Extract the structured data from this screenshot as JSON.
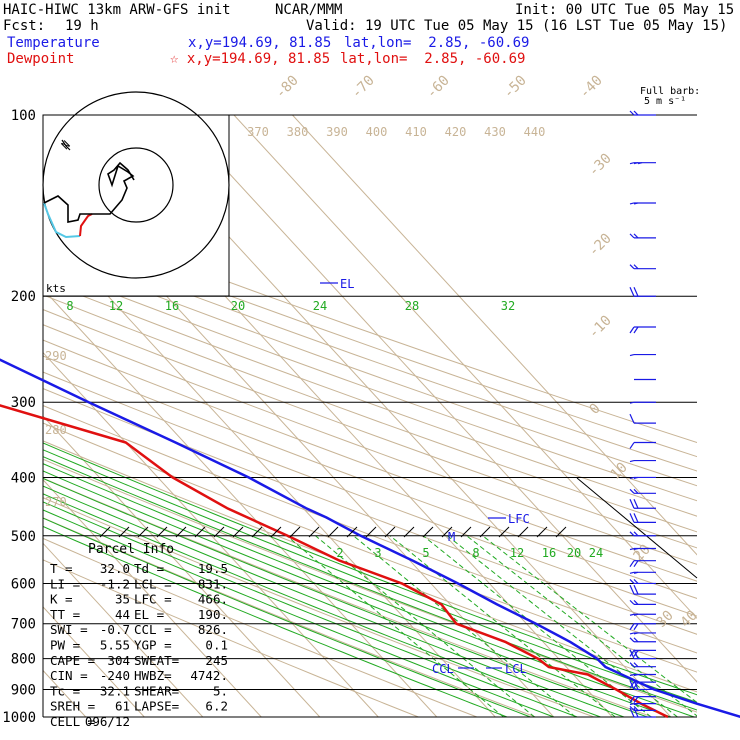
{
  "header": {
    "model": "HAIC-HIWC 13km ARW-GFS init",
    "org": "NCAR/MMM",
    "init": "Init: 00 UTC Tue 05 May 15",
    "fcst_label": "Fcst:",
    "fcst_value": "19 h",
    "valid": "Valid: 19 UTC Tue 05 May 15 (16 LST Tue 05 May 15)",
    "temp_label": "Temperature",
    "temp_xy": "x,y=194.69, 81.85",
    "temp_latlon": "lat,lon=  2.85, -60.69",
    "dew_label": "Dewpoint",
    "dew_xy": "☆ x,y=194.69, 81.85",
    "dew_latlon": "lat,lon=  2.85, -60.69"
  },
  "wind_legend": {
    "line1": "Full barb:",
    "line2": "5 m s⁻¹"
  },
  "hodograph": {
    "units": "kts",
    "north_label": "N"
  },
  "parcel": {
    "title": "Parcel Info",
    "rows": [
      [
        "T    =",
        "32.0",
        "Td =",
        "19.5"
      ],
      [
        "LI   =",
        "-1.2",
        "LCL =",
        "831."
      ],
      [
        "K    =",
        "35",
        "LFC =",
        "466."
      ],
      [
        "TT   =",
        "44",
        "EL  =",
        "190."
      ],
      [
        "SWI  =",
        "-0.7",
        "CCL =",
        "826."
      ],
      [
        "PW   =",
        "5.55",
        "YGP =",
        "0.1"
      ],
      [
        "CAPE =",
        "304",
        "SWEAT=",
        "245"
      ],
      [
        "CIN  =",
        "-240",
        "HWBZ=",
        "4742."
      ],
      [
        "Tc   =",
        "32.1",
        "SHEAR=",
        "5."
      ],
      [
        "SREH =",
        "61",
        "LAPSE=",
        "6.2"
      ],
      [
        "CELL =",
        "096/12",
        "",
        ""
      ]
    ]
  },
  "levels": {
    "el": "EL",
    "lfc": "LFC",
    "lcl": "LCL",
    "ccl": "CCL",
    "m": "M"
  },
  "colors": {
    "temperature": "#1a1ae6",
    "dewpoint": "#e01010",
    "mixing": "#22aa22",
    "adiabat": "#c8b496",
    "grid": "#000000"
  },
  "chart_data": {
    "type": "line",
    "title": "",
    "ylabel": "",
    "yscale": "log",
    "ylim": [
      1000,
      100
    ],
    "y_ticks": [
      100,
      200,
      300,
      400,
      500,
      600,
      700,
      800,
      900,
      1000
    ],
    "isotherm_labels": [
      "-80",
      "-70",
      "-60",
      "-50",
      "-40",
      "-30",
      "-20",
      "-10",
      "0",
      "10",
      "20",
      "30",
      "40"
    ],
    "theta_labels": [
      "370",
      "380",
      "390",
      "400",
      "410",
      "420",
      "430",
      "440"
    ],
    "theta_low_labels": [
      "290",
      "280",
      "270"
    ],
    "mixing_labels_upper": [
      "8",
      "12",
      "16",
      "20",
      "24",
      "28",
      "32"
    ],
    "mixing_labels_lower": [
      "2",
      "3",
      "5",
      "8",
      "12",
      "16",
      "20",
      "24"
    ],
    "series": [
      {
        "name": "Temperature",
        "points": [
          [
            1000,
            32.0
          ],
          [
            950,
            26.5
          ],
          [
            900,
            21.5
          ],
          [
            850,
            18.3
          ],
          [
            826,
            16.7
          ],
          [
            800,
            16.6
          ],
          [
            750,
            14.6
          ],
          [
            700,
            11.6
          ],
          [
            650,
            8.0
          ],
          [
            600,
            4.6
          ],
          [
            550,
            0.5
          ],
          [
            500,
            -4.5
          ],
          [
            466,
            -7.5
          ],
          [
            450,
            -9.5
          ],
          [
            400,
            -14.5
          ],
          [
            350,
            -21.5
          ],
          [
            300,
            -30.0
          ],
          [
            250,
            -39.5
          ],
          [
            200,
            -51.0
          ],
          [
            175,
            -57.5
          ],
          [
            150,
            -64.5
          ],
          [
            125,
            -72.0
          ],
          [
            110,
            -77.5
          ],
          [
            100,
            -82.0
          ]
        ]
      },
      {
        "name": "Dewpoint",
        "points": [
          [
            1000,
            19.5
          ],
          [
            950,
            17.0
          ],
          [
            900,
            15.0
          ],
          [
            850,
            12.5
          ],
          [
            826,
            7.0
          ],
          [
            800,
            6.5
          ],
          [
            750,
            3.5
          ],
          [
            700,
            -2.0
          ],
          [
            650,
            -1.5
          ],
          [
            600,
            -5.0
          ],
          [
            550,
            -12.0
          ],
          [
            500,
            -17.0
          ],
          [
            450,
            -23.0
          ],
          [
            400,
            -27.5
          ],
          [
            350,
            -30.0
          ],
          [
            300,
            -47.0
          ],
          [
            275,
            -62.0
          ],
          [
            250,
            -62.0
          ],
          [
            225,
            -61.0
          ],
          [
            210,
            -64.0
          ],
          [
            200,
            -62.0
          ],
          [
            180,
            -64.5
          ],
          [
            160,
            -72.0
          ],
          [
            140,
            -77.0
          ],
          [
            120,
            -82.0
          ],
          [
            100,
            -87.0
          ]
        ]
      }
    ],
    "wind": [
      [
        1000,
        4,
        240
      ],
      [
        975,
        4,
        245
      ],
      [
        950,
        5,
        250
      ],
      [
        925,
        5,
        255
      ],
      [
        900,
        5,
        260
      ],
      [
        875,
        5,
        255
      ],
      [
        850,
        6,
        250
      ],
      [
        825,
        5,
        245
      ],
      [
        800,
        5,
        240
      ],
      [
        775,
        5,
        235
      ],
      [
        750,
        6,
        245
      ],
      [
        725,
        6,
        250
      ],
      [
        700,
        6,
        255
      ],
      [
        675,
        6,
        250
      ],
      [
        650,
        5,
        245
      ],
      [
        625,
        5,
        240
      ],
      [
        600,
        6,
        245
      ],
      [
        575,
        6,
        250
      ],
      [
        550,
        6,
        255
      ],
      [
        525,
        5,
        250
      ],
      [
        500,
        5,
        245
      ],
      [
        475,
        5,
        240
      ],
      [
        450,
        4,
        240
      ],
      [
        425,
        4,
        245
      ],
      [
        400,
        4,
        250
      ],
      [
        375,
        3,
        250
      ],
      [
        350,
        3,
        255
      ],
      [
        325,
        3,
        260
      ],
      [
        300,
        2,
        250
      ],
      [
        275,
        1,
        240
      ],
      [
        250,
        3,
        270
      ],
      [
        225,
        4,
        275
      ],
      [
        200,
        5,
        280
      ],
      [
        180,
        5,
        285
      ],
      [
        160,
        6,
        285
      ],
      [
        140,
        6,
        290
      ],
      [
        120,
        7,
        290
      ],
      [
        100,
        6,
        285
      ]
    ]
  }
}
